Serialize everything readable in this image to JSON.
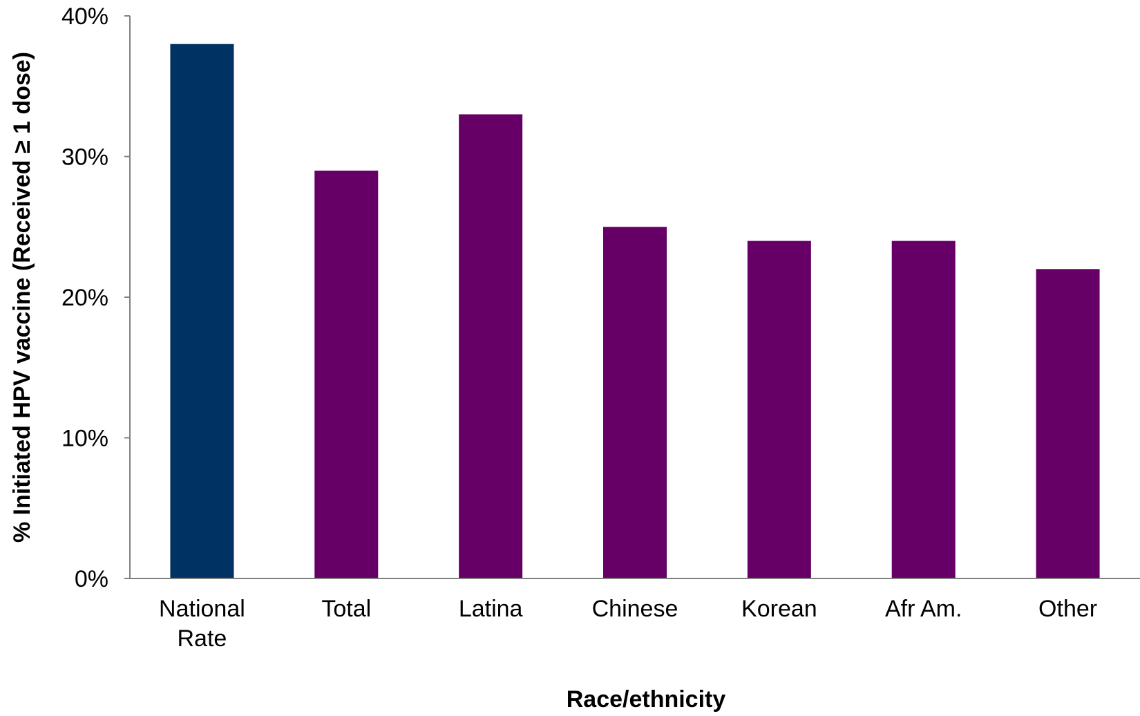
{
  "chart_data": {
    "type": "bar",
    "title": "",
    "xlabel": "Race/ethnicity",
    "ylabel": "% Initiated HPV vaccine (Received ≥ 1 dose)",
    "ylim": [
      0,
      40
    ],
    "y_ticks": [
      0,
      10,
      20,
      30,
      40
    ],
    "y_tick_labels": [
      "0%",
      "10%",
      "20%",
      "30%",
      "40%"
    ],
    "categories": [
      [
        "National",
        "Rate"
      ],
      [
        "Total"
      ],
      [
        "Latina"
      ],
      [
        "Chinese"
      ],
      [
        "Korean"
      ],
      [
        "Afr Am."
      ],
      [
        "Other"
      ]
    ],
    "values": [
      38,
      29,
      33,
      25,
      24,
      24,
      22
    ],
    "colors": [
      "#003263",
      "#660066",
      "#660066",
      "#660066",
      "#660066",
      "#660066",
      "#660066"
    ],
    "grid": false,
    "legend": "none"
  }
}
